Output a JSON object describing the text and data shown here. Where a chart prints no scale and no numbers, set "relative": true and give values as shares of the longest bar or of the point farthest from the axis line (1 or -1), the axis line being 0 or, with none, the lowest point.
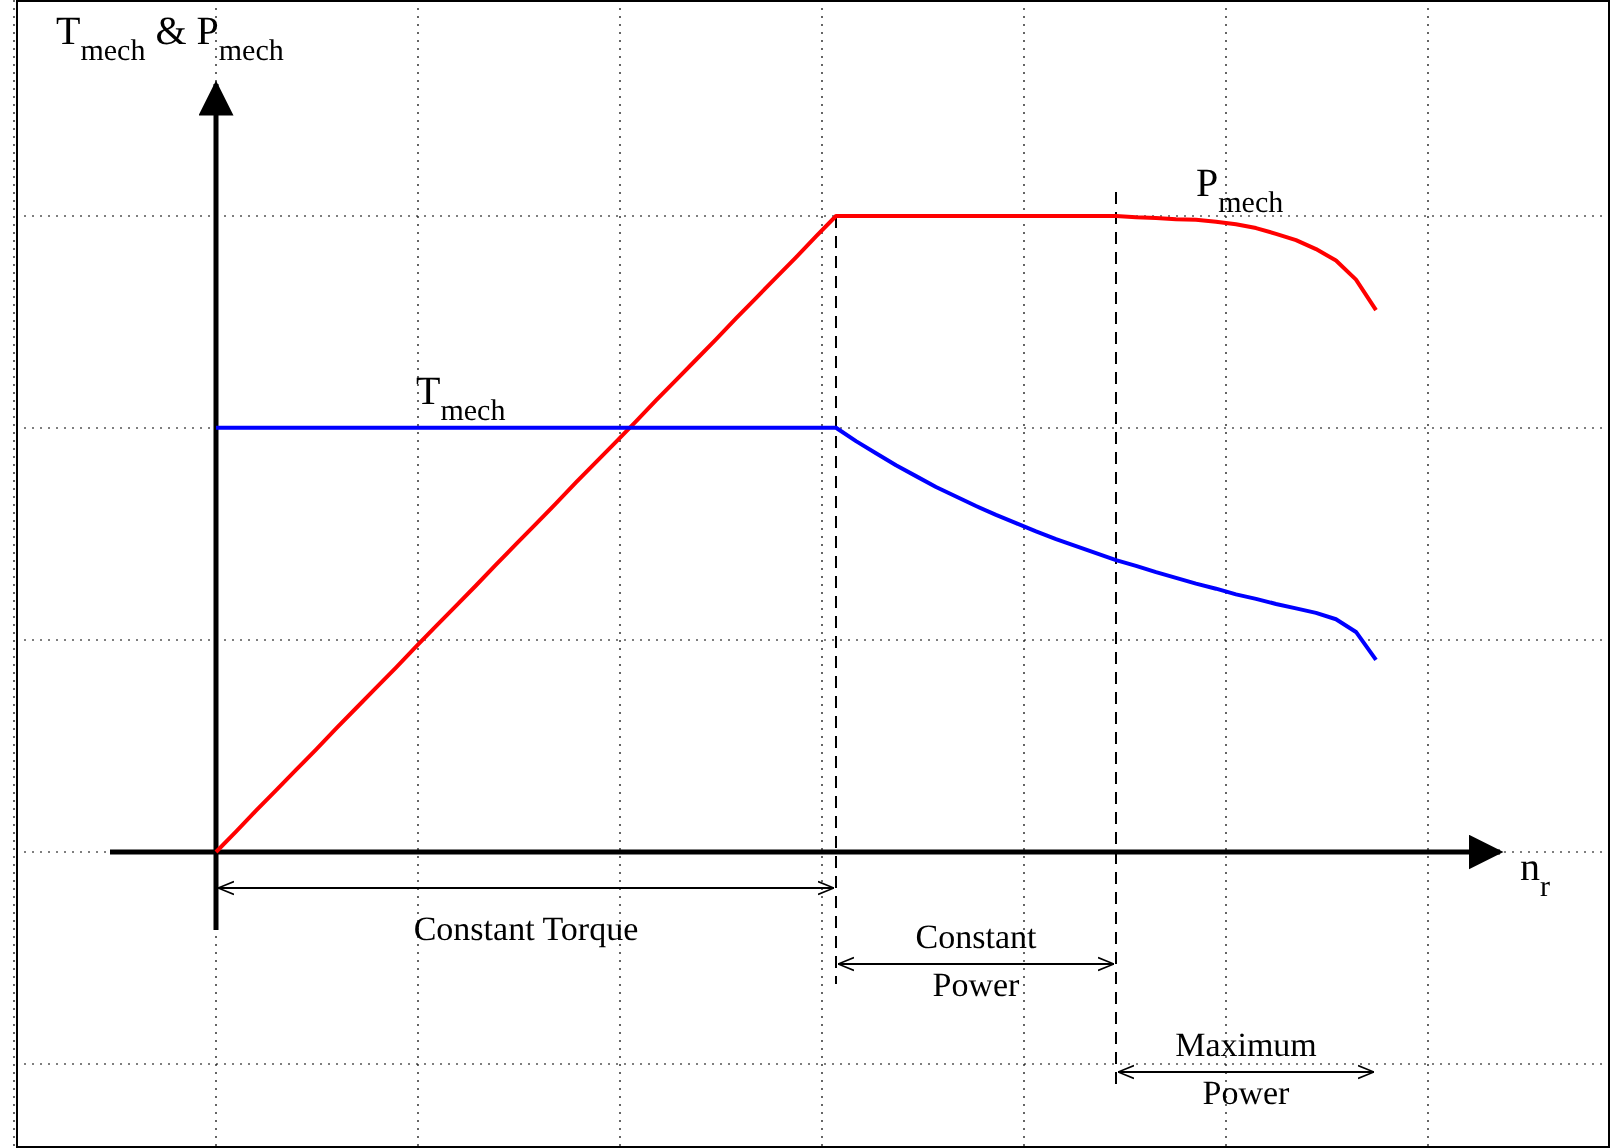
{
  "chart_data": {
    "type": "line",
    "relative": true,
    "grid": true,
    "line_style": "solid",
    "ylabel": "T$_{mech}$ & P$_{mech}$",
    "xlabel": "n$_{r}$",
    "categories": [
      null,
      null,
      null,
      null,
      null,
      null,
      null,
      null,
      null,
      null,
      null,
      null,
      null,
      null,
      null,
      null,
      null,
      null,
      null,
      null,
      null,
      null,
      null,
      null,
      null,
      null,
      null,
      null,
      null,
      null,
      null,
      null,
      null,
      null,
      null,
      null,
      null,
      null,
      null,
      null,
      null,
      null,
      null,
      null,
      null,
      null,
      null,
      null,
      null,
      null,
      null,
      null,
      null,
      null,
      null,
      null,
      null,
      null,
      null
    ],
    "series": [
      {
        "name": "P$_{mech}$",
        "color": "#ff0000",
        "values": [
          0,
          0.032,
          0.065,
          0.097,
          0.129,
          0.161,
          0.194,
          0.226,
          0.258,
          0.29,
          0.323,
          0.355,
          0.387,
          0.419,
          0.452,
          0.484,
          0.516,
          0.548,
          0.581,
          0.613,
          0.645,
          0.677,
          0.71,
          0.742,
          0.774,
          0.806,
          0.839,
          0.871,
          0.903,
          0.935,
          0.968,
          1,
          1,
          1,
          1,
          1,
          1,
          1,
          1,
          1,
          1,
          1,
          1,
          1,
          1,
          1,
          0.998,
          0.997,
          0.995,
          0.994,
          0.991,
          0.987,
          0.981,
          0.972,
          0.962,
          0.948,
          0.93,
          0.9,
          0.852
        ]
      },
      {
        "name": "T$_{mech}$",
        "color": "#0000ff",
        "values": [
          0.667,
          0.667,
          0.667,
          0.667,
          0.667,
          0.667,
          0.667,
          0.667,
          0.667,
          0.667,
          0.667,
          0.667,
          0.667,
          0.667,
          0.667,
          0.667,
          0.667,
          0.667,
          0.667,
          0.667,
          0.667,
          0.667,
          0.667,
          0.667,
          0.667,
          0.667,
          0.667,
          0.667,
          0.667,
          0.667,
          0.667,
          0.667,
          0.646,
          0.627,
          0.608,
          0.591,
          0.574,
          0.559,
          0.544,
          0.53,
          0.517,
          0.504,
          0.492,
          0.481,
          0.47,
          0.459,
          0.45,
          0.44,
          0.431,
          0.422,
          0.414,
          0.405,
          0.398,
          0.39,
          0.383,
          0.376,
          0.366,
          0.346,
          0.302
        ]
      }
    ],
    "annotations": [
      "Constant Torque",
      "Constant Power",
      "Maximum Power"
    ]
  }
}
